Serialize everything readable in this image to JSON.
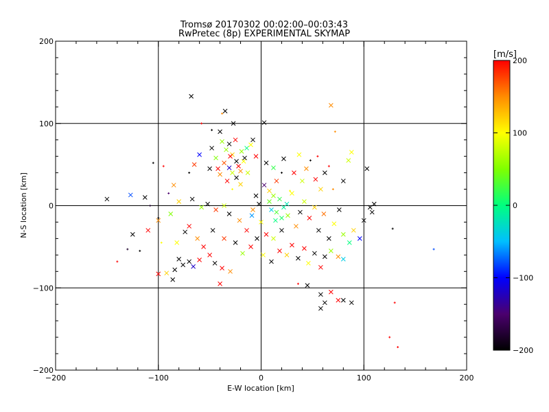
{
  "chart_data": {
    "type": "scatter",
    "title": "Tromsø 20170302 00:02:00–00:03:43",
    "subtitle": "RwPretec (8p) EXPERIMENTAL SKYMAP",
    "xlabel": "E-W location [km]",
    "ylabel": "N-S location [km]",
    "xlim": [
      -200,
      200
    ],
    "ylim": [
      -200,
      200
    ],
    "xticks": [
      -200,
      -100,
      0,
      100,
      200
    ],
    "yticks": [
      -200,
      -100,
      0,
      100,
      200
    ],
    "grid": true,
    "colorbar": {
      "label": "[m/s]",
      "min": -200,
      "max": 200,
      "ticks": [
        -200,
        -100,
        0,
        100,
        200
      ],
      "colors": [
        "#000000",
        "#4b006e",
        "#0000ff",
        "#00bfff",
        "#00ff7f",
        "#7fff00",
        "#ffff00",
        "#ff8c00",
        "#ff0000"
      ]
    },
    "markers": [
      "x",
      "+"
    ],
    "series": [
      {
        "points": [
          [
            -68,
            133,
            -200,
            "x"
          ],
          [
            -35,
            115,
            -200,
            "x"
          ],
          [
            -38,
            112,
            150,
            "+"
          ],
          [
            -27,
            100,
            -200,
            "x"
          ],
          [
            3,
            101,
            -200,
            "x"
          ],
          [
            68,
            122,
            150,
            "x"
          ],
          [
            72,
            90,
            150,
            "+"
          ],
          [
            -25,
            80,
            200,
            "x"
          ],
          [
            -31,
            75,
            -200,
            "x"
          ],
          [
            -28,
            62,
            120,
            "x"
          ],
          [
            -19,
            66,
            60,
            "x"
          ],
          [
            -14,
            70,
            0,
            "x"
          ],
          [
            -36,
            52,
            170,
            "x"
          ],
          [
            -31,
            46,
            -120,
            "x"
          ],
          [
            -22,
            48,
            200,
            "x"
          ],
          [
            -17,
            54,
            100,
            "x"
          ],
          [
            -40,
            38,
            150,
            "x"
          ],
          [
            -33,
            30,
            200,
            "x"
          ],
          [
            -24,
            34,
            -200,
            "x"
          ],
          [
            -13,
            40,
            80,
            "x"
          ],
          [
            -44,
            58,
            50,
            "x"
          ],
          [
            -60,
            62,
            -100,
            "x"
          ],
          [
            -65,
            50,
            180,
            "x"
          ],
          [
            -50,
            45,
            -200,
            "x"
          ],
          [
            -20,
            26,
            120,
            "x"
          ],
          [
            -28,
            20,
            100,
            "+"
          ],
          [
            -8,
            80,
            -200,
            "x"
          ],
          [
            -5,
            60,
            200,
            "x"
          ],
          [
            5,
            52,
            -200,
            "x"
          ],
          [
            12,
            46,
            20,
            "x"
          ],
          [
            22,
            57,
            -200,
            "x"
          ],
          [
            37,
            62,
            100,
            "x"
          ],
          [
            44,
            45,
            150,
            "x"
          ],
          [
            40,
            30,
            80,
            "x"
          ],
          [
            53,
            32,
            200,
            "x"
          ],
          [
            58,
            20,
            120,
            "x"
          ],
          [
            62,
            40,
            -200,
            "x"
          ],
          [
            85,
            55,
            80,
            "x"
          ],
          [
            88,
            65,
            100,
            "x"
          ],
          [
            103,
            45,
            -200,
            "x"
          ],
          [
            80,
            30,
            -200,
            "x"
          ],
          [
            70,
            20,
            150,
            "+"
          ],
          [
            -150,
            8,
            -200,
            "x"
          ],
          [
            -127,
            13,
            -80,
            "x"
          ],
          [
            -113,
            10,
            -200,
            "x"
          ],
          [
            -108,
            0,
            -180,
            "+"
          ],
          [
            -100,
            -18,
            150,
            "x"
          ],
          [
            -125,
            -35,
            -200,
            "x"
          ],
          [
            -130,
            -53,
            -180,
            "+"
          ],
          [
            -100,
            -15,
            -200,
            "+"
          ],
          [
            -88,
            -10,
            50,
            "x"
          ],
          [
            -80,
            5,
            120,
            "x"
          ],
          [
            -67,
            8,
            -200,
            "x"
          ],
          [
            -58,
            -2,
            60,
            "x"
          ],
          [
            -52,
            2,
            -200,
            "x"
          ],
          [
            -44,
            -5,
            180,
            "x"
          ],
          [
            -36,
            0,
            80,
            "x"
          ],
          [
            -31,
            -10,
            -200,
            "x"
          ],
          [
            -21,
            -18,
            150,
            "x"
          ],
          [
            -14,
            -30,
            200,
            "x"
          ],
          [
            -9,
            -12,
            -60,
            "x"
          ],
          [
            -5,
            12,
            -200,
            "x"
          ],
          [
            3,
            25,
            -150,
            "x"
          ],
          [
            8,
            5,
            40,
            "x"
          ],
          [
            10,
            -5,
            -40,
            "x"
          ],
          [
            14,
            -18,
            0,
            "x"
          ],
          [
            18,
            8,
            20,
            "x"
          ],
          [
            22,
            -2,
            -10,
            "x"
          ],
          [
            26,
            -12,
            60,
            "x"
          ],
          [
            30,
            15,
            100,
            "x"
          ],
          [
            34,
            -25,
            150,
            "x"
          ],
          [
            38,
            -8,
            -200,
            "x"
          ],
          [
            42,
            5,
            80,
            "x"
          ],
          [
            47,
            -15,
            200,
            "x"
          ],
          [
            52,
            -2,
            120,
            "x"
          ],
          [
            56,
            -30,
            -200,
            "x"
          ],
          [
            61,
            -10,
            160,
            "x"
          ],
          [
            66,
            -40,
            -200,
            "x"
          ],
          [
            71,
            -22,
            100,
            "x"
          ],
          [
            76,
            -5,
            -200,
            "x"
          ],
          [
            80,
            -35,
            60,
            "x"
          ],
          [
            86,
            -45,
            0,
            "x"
          ],
          [
            90,
            -30,
            120,
            "x"
          ],
          [
            96,
            -40,
            -100,
            "x"
          ],
          [
            106,
            -2,
            -200,
            "x"
          ],
          [
            110,
            2,
            -200,
            "x"
          ],
          [
            108,
            -8,
            -200,
            "x"
          ],
          [
            100,
            -18,
            -200,
            "x"
          ],
          [
            128,
            -28,
            -200,
            "+"
          ],
          [
            168,
            -53,
            -80,
            "+"
          ],
          [
            -80,
            -65,
            -200,
            "x"
          ],
          [
            -76,
            -72,
            -200,
            "x"
          ],
          [
            -70,
            -68,
            -200,
            "x"
          ],
          [
            -66,
            -74,
            -120,
            "x"
          ],
          [
            -84,
            -78,
            -200,
            "x"
          ],
          [
            -92,
            -82,
            120,
            "x"
          ],
          [
            -100,
            -83,
            200,
            "x"
          ],
          [
            -86,
            -90,
            -200,
            "x"
          ],
          [
            -60,
            -66,
            200,
            "x"
          ],
          [
            -50,
            -60,
            200,
            "x"
          ],
          [
            -45,
            -70,
            -200,
            "x"
          ],
          [
            -38,
            -76,
            200,
            "x"
          ],
          [
            -30,
            -80,
            150,
            "x"
          ],
          [
            -40,
            -95,
            200,
            "x"
          ],
          [
            -56,
            -50,
            200,
            "x"
          ],
          [
            -62,
            -40,
            150,
            "x"
          ],
          [
            -74,
            -32,
            -200,
            "x"
          ],
          [
            -82,
            -45,
            100,
            "x"
          ],
          [
            -70,
            -25,
            200,
            "x"
          ],
          [
            -47,
            -30,
            -200,
            "x"
          ],
          [
            -36,
            -40,
            180,
            "x"
          ],
          [
            -25,
            -45,
            -200,
            "x"
          ],
          [
            -18,
            -58,
            60,
            "x"
          ],
          [
            -10,
            -50,
            200,
            "x"
          ],
          [
            -4,
            -40,
            -200,
            "x"
          ],
          [
            2,
            -60,
            100,
            "x"
          ],
          [
            10,
            -68,
            -200,
            "x"
          ],
          [
            18,
            -55,
            200,
            "x"
          ],
          [
            25,
            -60,
            120,
            "x"
          ],
          [
            30,
            -48,
            200,
            "x"
          ],
          [
            36,
            -64,
            -200,
            "x"
          ],
          [
            42,
            -52,
            200,
            "x"
          ],
          [
            46,
            -70,
            100,
            "x"
          ],
          [
            52,
            -58,
            -200,
            "x"
          ],
          [
            58,
            -75,
            200,
            "x"
          ],
          [
            62,
            -62,
            -200,
            "x"
          ],
          [
            68,
            -55,
            60,
            "x"
          ],
          [
            75,
            -62,
            150,
            "x"
          ],
          [
            80,
            -65,
            -40,
            "x"
          ],
          [
            36,
            -95,
            200,
            "+"
          ],
          [
            45,
            -97,
            -200,
            "x"
          ],
          [
            58,
            -108,
            -200,
            "x"
          ],
          [
            68,
            -105,
            200,
            "x"
          ],
          [
            62,
            -118,
            -200,
            "x"
          ],
          [
            58,
            -125,
            -200,
            "x"
          ],
          [
            75,
            -115,
            200,
            "x"
          ],
          [
            80,
            -115,
            -200,
            "x"
          ],
          [
            88,
            -118,
            -200,
            "x"
          ],
          [
            130,
            -118,
            200,
            "+"
          ],
          [
            125,
            -160,
            200,
            "+"
          ],
          [
            133,
            -172,
            200,
            "+"
          ],
          [
            -58,
            100,
            200,
            "+"
          ],
          [
            -48,
            92,
            -200,
            "+"
          ],
          [
            -40,
            90,
            -200,
            "x"
          ],
          [
            -70,
            40,
            -200,
            "+"
          ],
          [
            -95,
            48,
            200,
            "+"
          ],
          [
            -105,
            52,
            -200,
            "+"
          ],
          [
            -85,
            25,
            150,
            "x"
          ],
          [
            -90,
            15,
            -150,
            "+"
          ],
          [
            -118,
            -55,
            -200,
            "+"
          ],
          [
            -140,
            -68,
            200,
            "+"
          ],
          [
            -97,
            -45,
            100,
            "+"
          ],
          [
            -110,
            -30,
            200,
            "x"
          ],
          [
            15,
            30,
            180,
            "x"
          ],
          [
            20,
            40,
            -200,
            "+"
          ],
          [
            28,
            18,
            100,
            "+"
          ],
          [
            32,
            40,
            200,
            "x"
          ],
          [
            48,
            55,
            -200,
            "+"
          ],
          [
            55,
            60,
            200,
            "+"
          ],
          [
            66,
            48,
            200,
            "+"
          ],
          [
            0,
            -20,
            100,
            "x"
          ],
          [
            5,
            -35,
            200,
            "x"
          ],
          [
            12,
            -40,
            80,
            "x"
          ],
          [
            20,
            -30,
            -200,
            "x"
          ],
          [
            -2,
            2,
            -200,
            "x"
          ],
          [
            -8,
            -5,
            150,
            "x"
          ],
          [
            15,
            -8,
            30,
            "x"
          ],
          [
            20,
            -15,
            10,
            "x"
          ],
          [
            25,
            2,
            -20,
            "x"
          ],
          [
            12,
            12,
            60,
            "x"
          ],
          [
            8,
            18,
            120,
            "x"
          ],
          [
            -30,
            60,
            200,
            "x"
          ],
          [
            -24,
            54,
            -200,
            "x"
          ],
          [
            -34,
            68,
            60,
            "x"
          ],
          [
            -20,
            42,
            150,
            "x"
          ],
          [
            -42,
            45,
            200,
            "x"
          ],
          [
            -28,
            40,
            80,
            "x"
          ],
          [
            -16,
            58,
            -200,
            "x"
          ],
          [
            -10,
            74,
            100,
            "x"
          ],
          [
            -38,
            78,
            60,
            "x"
          ],
          [
            -48,
            70,
            -200,
            "x"
          ]
        ]
      }
    ]
  }
}
